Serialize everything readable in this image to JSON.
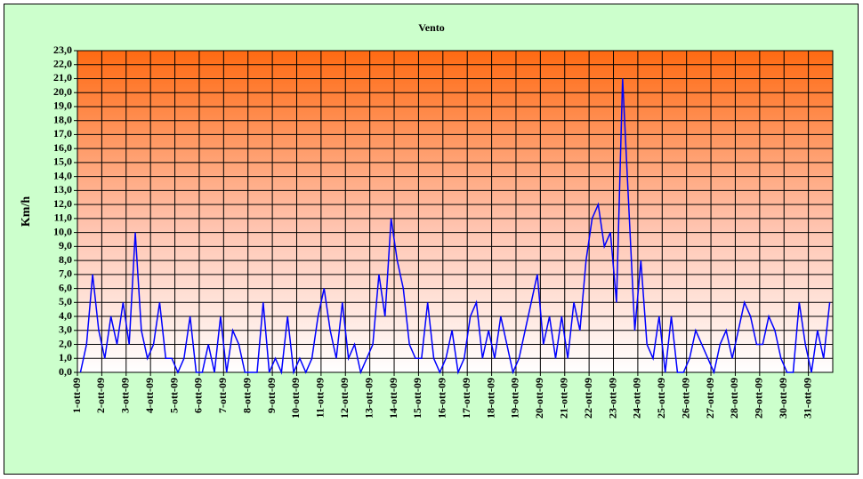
{
  "chart_data": {
    "type": "line",
    "title": "Vento",
    "y_label": "Km/h",
    "color": "#0000ff",
    "grid": true,
    "categories": [
      "1-ott-09",
      null,
      null,
      null,
      "2-ott-09",
      null,
      null,
      null,
      "3-ott-09",
      null,
      null,
      null,
      "4-ott-09",
      null,
      null,
      null,
      "5-ott-09",
      null,
      null,
      null,
      "6-ott-09",
      null,
      null,
      null,
      "7-ott-09",
      null,
      null,
      null,
      "8-ott-09",
      null,
      null,
      null,
      "9-ott-09",
      null,
      null,
      null,
      "10-ott-09",
      null,
      null,
      null,
      "11-ott-09",
      null,
      null,
      null,
      "12-ott-09",
      null,
      null,
      null,
      "13-ott-09",
      null,
      null,
      null,
      "14-ott-09",
      null,
      null,
      null,
      "15-ott-09",
      null,
      null,
      null,
      "16-ott-09",
      null,
      null,
      null,
      "17-ott-09",
      null,
      null,
      null,
      "18-ott-09",
      null,
      null,
      null,
      "19-ott-09",
      null,
      null,
      null,
      "20-ott-09",
      null,
      null,
      null,
      "21-ott-09",
      null,
      null,
      null,
      "22-ott-09",
      null,
      null,
      null,
      "23-ott-09",
      null,
      null,
      null,
      "24-ott-09",
      null,
      null,
      null,
      "25-ott-09",
      null,
      null,
      null,
      "26-ott-09",
      null,
      null,
      null,
      "27-ott-09",
      null,
      null,
      null,
      "28-ott-09",
      null,
      null,
      null,
      "29-ott-09",
      null,
      null,
      null,
      "30-ott-09",
      null,
      null,
      null,
      "31-ott-09",
      null,
      null,
      null
    ],
    "values": [
      0,
      2,
      7,
      3,
      1,
      4,
      2,
      5,
      2,
      10,
      3,
      1,
      2,
      5,
      1,
      1,
      0,
      1,
      4,
      0,
      0,
      2,
      0,
      4,
      0,
      3,
      2,
      0,
      0,
      0,
      5,
      0,
      1,
      0,
      4,
      0,
      1,
      0,
      1,
      4,
      6,
      3,
      1,
      5,
      1,
      2,
      0,
      1,
      2,
      7,
      4,
      11,
      8,
      6,
      2,
      1,
      1,
      5,
      1,
      0,
      1,
      3,
      0,
      1,
      4,
      5,
      1,
      3,
      1,
      4,
      2,
      0,
      1,
      3,
      5,
      7,
      2,
      4,
      1,
      4,
      1,
      5,
      3,
      8,
      11,
      12,
      9,
      10,
      5,
      21,
      12,
      3,
      8,
      2,
      1,
      4,
      0,
      4,
      0,
      0,
      1,
      3,
      2,
      1,
      0,
      2,
      3,
      1,
      3,
      5,
      4,
      2,
      2,
      4,
      3,
      1,
      0,
      0,
      5,
      2,
      0,
      3,
      1,
      5
    ],
    "ylim": [
      0,
      23
    ],
    "yticks": [
      {
        "value": 0,
        "label": "0,0"
      },
      {
        "value": 1,
        "label": "1,0"
      },
      {
        "value": 2,
        "label": "2,0"
      },
      {
        "value": 3,
        "label": "3,0"
      },
      {
        "value": 4,
        "label": "4,0"
      },
      {
        "value": 5,
        "label": "5,0"
      },
      {
        "value": 6,
        "label": "6,0"
      },
      {
        "value": 7,
        "label": "7,0"
      },
      {
        "value": 8,
        "label": "8,0"
      },
      {
        "value": 9,
        "label": "9,0"
      },
      {
        "value": 10,
        "label": "10,0"
      },
      {
        "value": 11,
        "label": "11,0"
      },
      {
        "value": 12,
        "label": "12,0"
      },
      {
        "value": 13,
        "label": "13,0"
      },
      {
        "value": 14,
        "label": "14,0"
      },
      {
        "value": 15,
        "label": "15,0"
      },
      {
        "value": 16,
        "label": "16,0"
      },
      {
        "value": 17,
        "label": "17,0"
      },
      {
        "value": 18,
        "label": "18,0"
      },
      {
        "value": 19,
        "label": "19,0"
      },
      {
        "value": 20,
        "label": "20,0"
      },
      {
        "value": 21,
        "label": "21,0"
      },
      {
        "value": 22,
        "label": "22,0"
      },
      {
        "value": 23,
        "label": "23,0"
      }
    ]
  }
}
